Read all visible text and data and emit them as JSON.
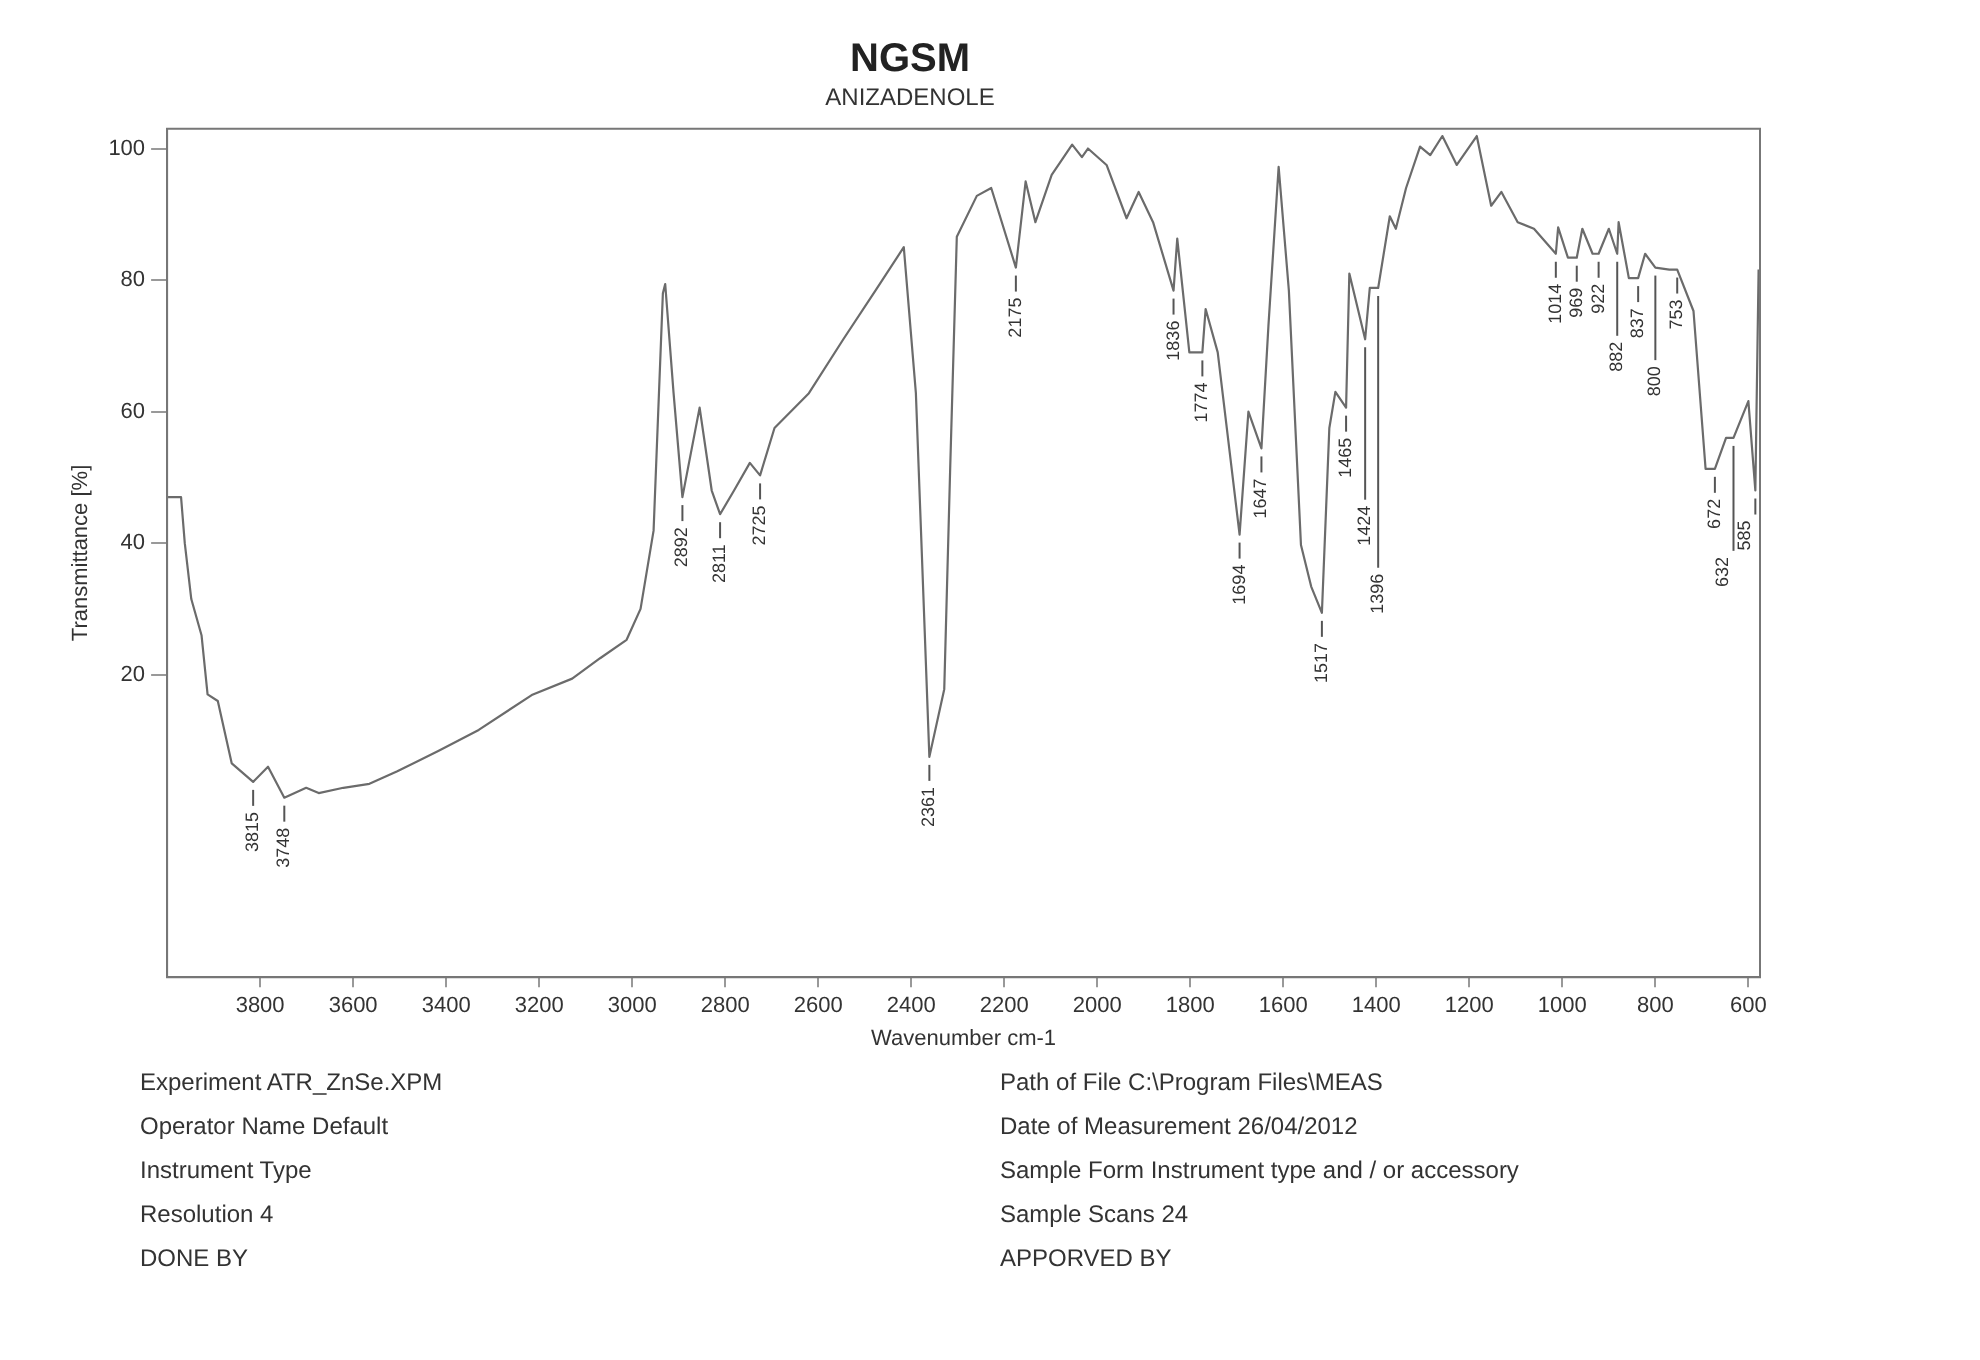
{
  "chart_data": {
    "type": "line",
    "title": "NGSM",
    "subtitle": "ANIZADENOLE",
    "xlabel": "Wavenumber cm-1",
    "ylabel": "Transmittance [%]",
    "xlim": [
      4000,
      575
    ],
    "xticks": [
      3800,
      3600,
      3400,
      3200,
      3000,
      2800,
      2600,
      2400,
      2200,
      2000,
      1800,
      1600,
      1400,
      1200,
      1000,
      800,
      600
    ],
    "ylim": [
      -26,
      103
    ],
    "yticks": [
      20,
      40,
      60,
      80,
      100
    ],
    "grid": false,
    "legend": false,
    "series": [
      {
        "color": "#6b6b6b",
        "x": [
          3998,
          3970,
          3962,
          3948,
          3926,
          3913,
          3891,
          3861,
          3815,
          3783,
          3748,
          3701,
          3674,
          3621,
          3565,
          3505,
          3417,
          3330,
          3216,
          3129,
          3069,
          3012,
          2982,
          2954,
          2934,
          2929,
          2911,
          2892,
          2855,
          2829,
          2811,
          2781,
          2747,
          2725,
          2694,
          2620,
          2546,
          2477,
          2416,
          2390,
          2361,
          2329,
          2316,
          2302,
          2259,
          2228,
          2175,
          2154,
          2133,
          2098,
          2054,
          2033,
          2020,
          1980,
          1937,
          1911,
          1880,
          1836,
          1828,
          1802,
          1774,
          1767,
          1741,
          1694,
          1675,
          1647,
          1632,
          1610,
          1588,
          1562,
          1540,
          1517,
          1501,
          1488,
          1465,
          1458,
          1424,
          1414,
          1396,
          1371,
          1358,
          1336,
          1306,
          1284,
          1258,
          1227,
          1184,
          1153,
          1131,
          1096,
          1061,
          1014,
          1009,
          988,
          969,
          957,
          935,
          922,
          900,
          882,
          879,
          857,
          837,
          822,
          800,
          770,
          753,
          718,
          692,
          672,
          648,
          632,
          600,
          585,
          578
        ],
        "values": [
          47,
          47,
          40,
          31.5,
          26,
          17,
          16,
          6.5,
          3.7,
          6,
          1.3,
          2.8,
          2,
          2.8,
          3.4,
          5.3,
          8.4,
          11.6,
          16.9,
          19.4,
          22.5,
          25.3,
          30,
          41.9,
          78,
          79.4,
          62.8,
          47,
          60.6,
          48,
          44.4,
          48,
          52.2,
          50.3,
          57.5,
          62.8,
          71,
          78.4,
          85,
          62.8,
          7.5,
          17.8,
          52,
          86.6,
          92.8,
          94,
          81.9,
          95,
          88.8,
          96,
          100.6,
          98.7,
          100,
          97.5,
          89.4,
          93.4,
          88.8,
          78.4,
          86.3,
          69,
          69,
          75.6,
          69,
          41.3,
          60,
          54.4,
          73,
          97.2,
          78.4,
          39.7,
          33.4,
          29.4,
          57.5,
          63,
          60.6,
          81,
          71,
          78.8,
          78.8,
          89.7,
          87.8,
          94,
          100.3,
          99,
          101.9,
          97.5,
          101.9,
          91.3,
          93.4,
          88.8,
          87.8,
          84,
          88,
          83.4,
          83.4,
          87.8,
          84,
          84,
          87.8,
          84,
          88.8,
          80.3,
          80.3,
          84,
          81.9,
          81.6,
          81.6,
          75.3,
          51.3,
          51.3,
          56,
          56,
          61.6,
          48,
          81.6
        ]
      }
    ],
    "annotations": [
      {
        "text": "3815",
        "x": 3815,
        "y": 3.7
      },
      {
        "text": "3748",
        "x": 3748,
        "y": 1.3
      },
      {
        "text": "2892",
        "x": 2892,
        "y": 47
      },
      {
        "text": "2811",
        "x": 2811,
        "y": 44.4
      },
      {
        "text": "2725",
        "x": 2725,
        "y": 50.3
      },
      {
        "text": "2361",
        "x": 2361,
        "y": 7.5
      },
      {
        "text": "2175",
        "x": 2175,
        "y": 81.9
      },
      {
        "text": "1836",
        "x": 1836,
        "y": 78.4
      },
      {
        "text": "1774",
        "x": 1774,
        "y": 69
      },
      {
        "text": "1694",
        "x": 1694,
        "y": 41.3
      },
      {
        "text": "1647",
        "x": 1647,
        "y": 54.4
      },
      {
        "text": "1517",
        "x": 1517,
        "y": 29.4
      },
      {
        "text": "1465",
        "x": 1465,
        "y": 60.6
      },
      {
        "text": "1424",
        "x": 1424,
        "y": 71
      },
      {
        "text": "1396",
        "x": 1396,
        "y": 78.8
      },
      {
        "text": "1014",
        "x": 1014,
        "y": 84
      },
      {
        "text": "969",
        "x": 969,
        "y": 83.4
      },
      {
        "text": "922",
        "x": 922,
        "y": 84
      },
      {
        "text": "882",
        "x": 882,
        "y": 84
      },
      {
        "text": "837",
        "x": 837,
        "y": 80.3
      },
      {
        "text": "800",
        "x": 800,
        "y": 81.9
      },
      {
        "text": "753",
        "x": 753,
        "y": 81.6
      },
      {
        "text": "672",
        "x": 672,
        "y": 51.3
      },
      {
        "text": "632",
        "x": 632,
        "y": 56
      },
      {
        "text": "585",
        "x": 585,
        "y": 48
      },
      "Experiment ATR_ZnSe.XPM",
      "Path of File C:\\Program Files\\MEAS",
      "Operator Name Default",
      "Date of Measurement 26/04/2012",
      "Instrument Type",
      "Sample Form Instrument type and / or accessory",
      "Resolution 4",
      "Sample Scans 24",
      "DONE BY",
      "APPORVED BY"
    ]
  }
}
